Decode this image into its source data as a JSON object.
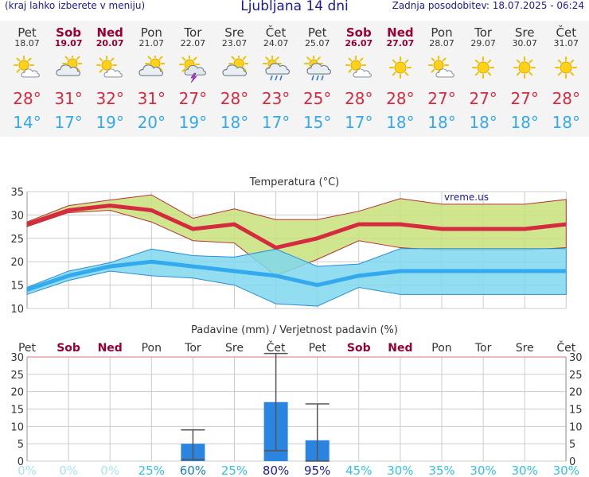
{
  "header": {
    "left_note": "(kraj lahko izberete v meniju)",
    "title": "Ljubljana 14 dni",
    "updated": "Zadnja posodobitev: 18.07.2025 - 06:24"
  },
  "days": [
    {
      "name": "Pet",
      "date": "18.07",
      "weekend": false,
      "icon": "sun-cloud-icon",
      "tmax": "28°",
      "tmin": "14°"
    },
    {
      "name": "Sob",
      "date": "19.07",
      "weekend": true,
      "icon": "cloud-sun-icon",
      "tmax": "31°",
      "tmin": "17°"
    },
    {
      "name": "Ned",
      "date": "20.07",
      "weekend": true,
      "icon": "sun-cloud-icon",
      "tmax": "32°",
      "tmin": "19°"
    },
    {
      "name": "Pon",
      "date": "21.07",
      "weekend": false,
      "icon": "cloud-sun-icon",
      "tmax": "31°",
      "tmin": "20°"
    },
    {
      "name": "Tor",
      "date": "22.07",
      "weekend": false,
      "icon": "sun-thunderstorm-icon",
      "tmax": "27°",
      "tmin": "19°"
    },
    {
      "name": "Sre",
      "date": "23.07",
      "weekend": false,
      "icon": "cloud-sun-icon",
      "tmax": "28°",
      "tmin": "18°"
    },
    {
      "name": "Čet",
      "date": "24.07",
      "weekend": false,
      "icon": "sun-rain-icon",
      "tmax": "23°",
      "tmin": "17°"
    },
    {
      "name": "Pet",
      "date": "25.07",
      "weekend": false,
      "icon": "sun-rain-icon",
      "tmax": "25°",
      "tmin": "15°"
    },
    {
      "name": "Sob",
      "date": "26.07",
      "weekend": true,
      "icon": "sun-cloud-icon",
      "tmax": "28°",
      "tmin": "17°"
    },
    {
      "name": "Ned",
      "date": "27.07",
      "weekend": true,
      "icon": "sun-icon",
      "tmax": "28°",
      "tmin": "18°"
    },
    {
      "name": "Pon",
      "date": "28.07",
      "weekend": false,
      "icon": "sun-cloud-icon",
      "tmax": "27°",
      "tmin": "18°"
    },
    {
      "name": "Tor",
      "date": "29.07",
      "weekend": false,
      "icon": "sun-icon",
      "tmax": "27°",
      "tmin": "18°"
    },
    {
      "name": "Sre",
      "date": "30.07",
      "weekend": false,
      "icon": "sun-icon",
      "tmax": "27°",
      "tmin": "18°"
    },
    {
      "name": "Čet",
      "date": "31.07",
      "weekend": false,
      "icon": "sun-icon",
      "tmax": "28°",
      "tmin": "18°"
    }
  ],
  "colors": {
    "tmax_line": "#d52b3f",
    "tmin_line": "#33aaee",
    "max_band": "#c8e27a",
    "min_band": "#7fd7ec",
    "precip_bar": "#2a84e0",
    "weekend": "#990033",
    "header_text": "#1a1a9a"
  },
  "chart_data": [
    {
      "type": "line",
      "title": "Temperatura (°C)",
      "watermark": "vreme.us",
      "categories": [
        "Pet",
        "Sob",
        "Ned",
        "Pon",
        "Tor",
        "Sre",
        "Čet",
        "Pet",
        "Sob",
        "Ned",
        "Pon",
        "Tor",
        "Sre",
        "Čet"
      ],
      "ylim": [
        10,
        35
      ],
      "yticks": [
        10,
        15,
        20,
        25,
        30,
        35
      ],
      "series": [
        {
          "values": [
            28,
            31,
            32,
            31,
            27,
            28,
            23,
            25,
            28,
            28,
            27,
            27,
            27,
            28
          ]
        },
        {
          "values": [
            14,
            17,
            19,
            20,
            19,
            18,
            17,
            15,
            17,
            18,
            18,
            18,
            18,
            18
          ]
        }
      ],
      "max_range": {
        "low": [
          27.5,
          30.5,
          31,
          28.5,
          24.5,
          24,
          17,
          20.5,
          24.5,
          23,
          22.5,
          22.5,
          22.5,
          23
        ],
        "high": [
          28.5,
          32,
          33.2,
          34.3,
          29.3,
          31.3,
          29,
          29,
          30.8,
          33.5,
          32.3,
          32.3,
          32.3,
          33.3
        ]
      },
      "min_range": {
        "low": [
          13,
          16,
          18,
          17,
          16.5,
          15,
          11,
          10.5,
          14.5,
          13,
          13,
          13,
          13,
          13
        ],
        "high": [
          14.5,
          18,
          19.8,
          22.7,
          21.3,
          21,
          22.7,
          19,
          19.5,
          22.8,
          22.8,
          22.8,
          22.8,
          22.8
        ]
      },
      "grid": true
    },
    {
      "type": "bar",
      "title": "Padavine (mm) / Verjetnost padavin (%)",
      "categories": [
        "Pet",
        "Sob",
        "Ned",
        "Pon",
        "Tor",
        "Sre",
        "Čet",
        "Pet",
        "Sob",
        "Ned",
        "Pon",
        "Tor",
        "Sre",
        "Čet"
      ],
      "ylim": [
        0,
        30
      ],
      "yticks": [
        0,
        5,
        10,
        15,
        20,
        25,
        30
      ],
      "values": [
        0,
        0,
        0,
        0,
        5,
        0,
        17,
        6,
        0,
        0,
        0,
        0,
        0,
        0
      ],
      "error_low": [
        0,
        0,
        0,
        0,
        0.5,
        0,
        3,
        0,
        0,
        0,
        0,
        0,
        0,
        0
      ],
      "error_high": [
        0,
        0,
        0,
        0,
        9,
        0,
        31,
        16.5,
        0,
        0,
        0,
        0,
        0,
        0
      ],
      "probability": [
        "0%",
        "0%",
        "0%",
        "25%",
        "60%",
        "25%",
        "80%",
        "95%",
        "45%",
        "30%",
        "35%",
        "30%",
        "30%",
        "30%"
      ],
      "probability_level": [
        0,
        0,
        0,
        1,
        2,
        1,
        3,
        3,
        1,
        1,
        1,
        1,
        1,
        1
      ]
    }
  ]
}
